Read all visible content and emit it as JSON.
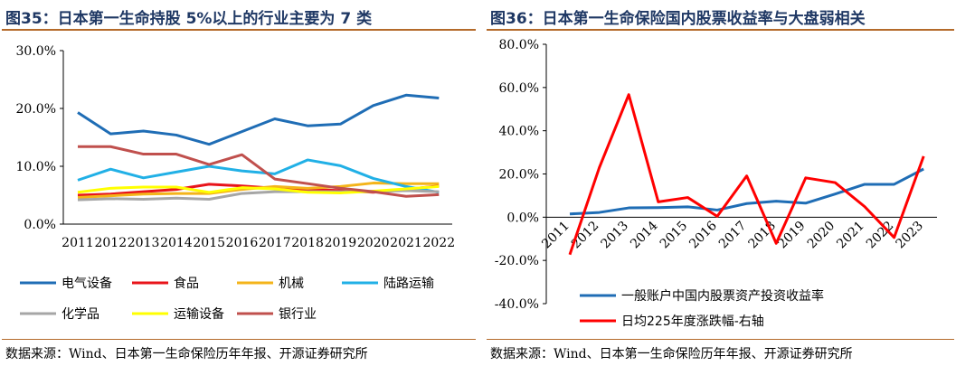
{
  "left": {
    "title": "图35：日本第一生命持股 5%以上的行业主要为 7 类",
    "source": "数据来源：Wind、日本第一生命保险历年年报、开源证券研究所"
  },
  "right": {
    "title": "图36：日本第一生命保险国内股票收益率与大盘弱相关",
    "source": "数据来源：Wind、日本第一生命保险历年年报、开源证券研究所"
  },
  "chart_data": [
    {
      "type": "line",
      "title": "图35：日本第一生命持股 5%以上的行业主要为 7 类",
      "x": [
        "2011",
        "2012",
        "2013",
        "2014",
        "2015",
        "2016",
        "2017",
        "2018",
        "2019",
        "2020",
        "2021",
        "2022"
      ],
      "ylim": [
        0,
        30
      ],
      "yticks": [
        "0.0%",
        "10.0%",
        "20.0%",
        "30.0%"
      ],
      "ytick_values": [
        0,
        10,
        20,
        30
      ],
      "grid": false,
      "legend_position": "bottom",
      "series": [
        {
          "name": "电气设备",
          "color": "#1f6db5",
          "values": [
            19.3,
            15.6,
            16.1,
            15.4,
            13.8,
            16.0,
            18.2,
            17.0,
            17.3,
            20.5,
            22.3,
            21.8
          ]
        },
        {
          "name": "食品",
          "color": "#e8141a",
          "values": [
            5.0,
            5.2,
            5.6,
            6.0,
            6.9,
            6.6,
            6.2,
            6.0,
            5.8,
            5.5,
            6.0,
            6.6
          ]
        },
        {
          "name": "机械",
          "color": "#f4b41a",
          "values": [
            4.6,
            4.9,
            5.2,
            5.3,
            5.3,
            6.0,
            6.5,
            6.2,
            6.5,
            7.1,
            7.0,
            7.0
          ]
        },
        {
          "name": "陆路运输",
          "color": "#21b0e6",
          "values": [
            7.6,
            9.5,
            8.0,
            9.0,
            10.0,
            9.2,
            8.7,
            11.1,
            10.1,
            7.9,
            6.5,
            5.5
          ]
        },
        {
          "name": "化学品",
          "color": "#a6a6a6",
          "values": [
            4.2,
            4.4,
            4.3,
            4.5,
            4.3,
            5.3,
            5.6,
            5.6,
            5.6,
            5.6,
            5.8,
            5.6
          ]
        },
        {
          "name": "运输设备",
          "color": "#ffff00",
          "values": [
            5.5,
            6.2,
            6.4,
            6.4,
            5.5,
            6.3,
            6.1,
            5.5,
            5.4,
            5.7,
            6.1,
            6.5
          ]
        },
        {
          "name": "银行业",
          "color": "#c0504d",
          "values": [
            13.4,
            13.4,
            12.1,
            12.1,
            10.3,
            12.0,
            7.8,
            7.0,
            6.2,
            5.6,
            4.8,
            5.1
          ]
        }
      ]
    },
    {
      "type": "line",
      "title": "图36：日本第一生命保险国内股票收益率与大盘弱相关",
      "x": [
        "2011",
        "2012",
        "2013",
        "2014",
        "2015",
        "2016",
        "2017",
        "2018",
        "2019",
        "2020",
        "2021",
        "2022",
        "2023"
      ],
      "ylim": [
        -40,
        80
      ],
      "yticks": [
        "-40.0%",
        "-20.0%",
        "0.0%",
        "20.0%",
        "40.0%",
        "60.0%",
        "80.0%"
      ],
      "ytick_values": [
        -40,
        -20,
        0,
        20,
        40,
        60,
        80
      ],
      "grid": false,
      "legend_position": "bottom",
      "series": [
        {
          "name": "一般账户中国内股票资产投资收益率",
          "color": "#1f6db5",
          "values": [
            1.5,
            2.2,
            4.3,
            4.4,
            4.8,
            3.3,
            6.3,
            7.4,
            6.5,
            10.7,
            15.2,
            15.2,
            22.3
          ]
        },
        {
          "name": "日均225年度涨跌幅-右轴",
          "color": "#ff0000",
          "values": [
            -17.3,
            22.9,
            56.7,
            7.1,
            9.1,
            0.4,
            19.1,
            -12.1,
            18.2,
            16.0,
            4.9,
            -9.4,
            28.2
          ]
        }
      ]
    }
  ]
}
